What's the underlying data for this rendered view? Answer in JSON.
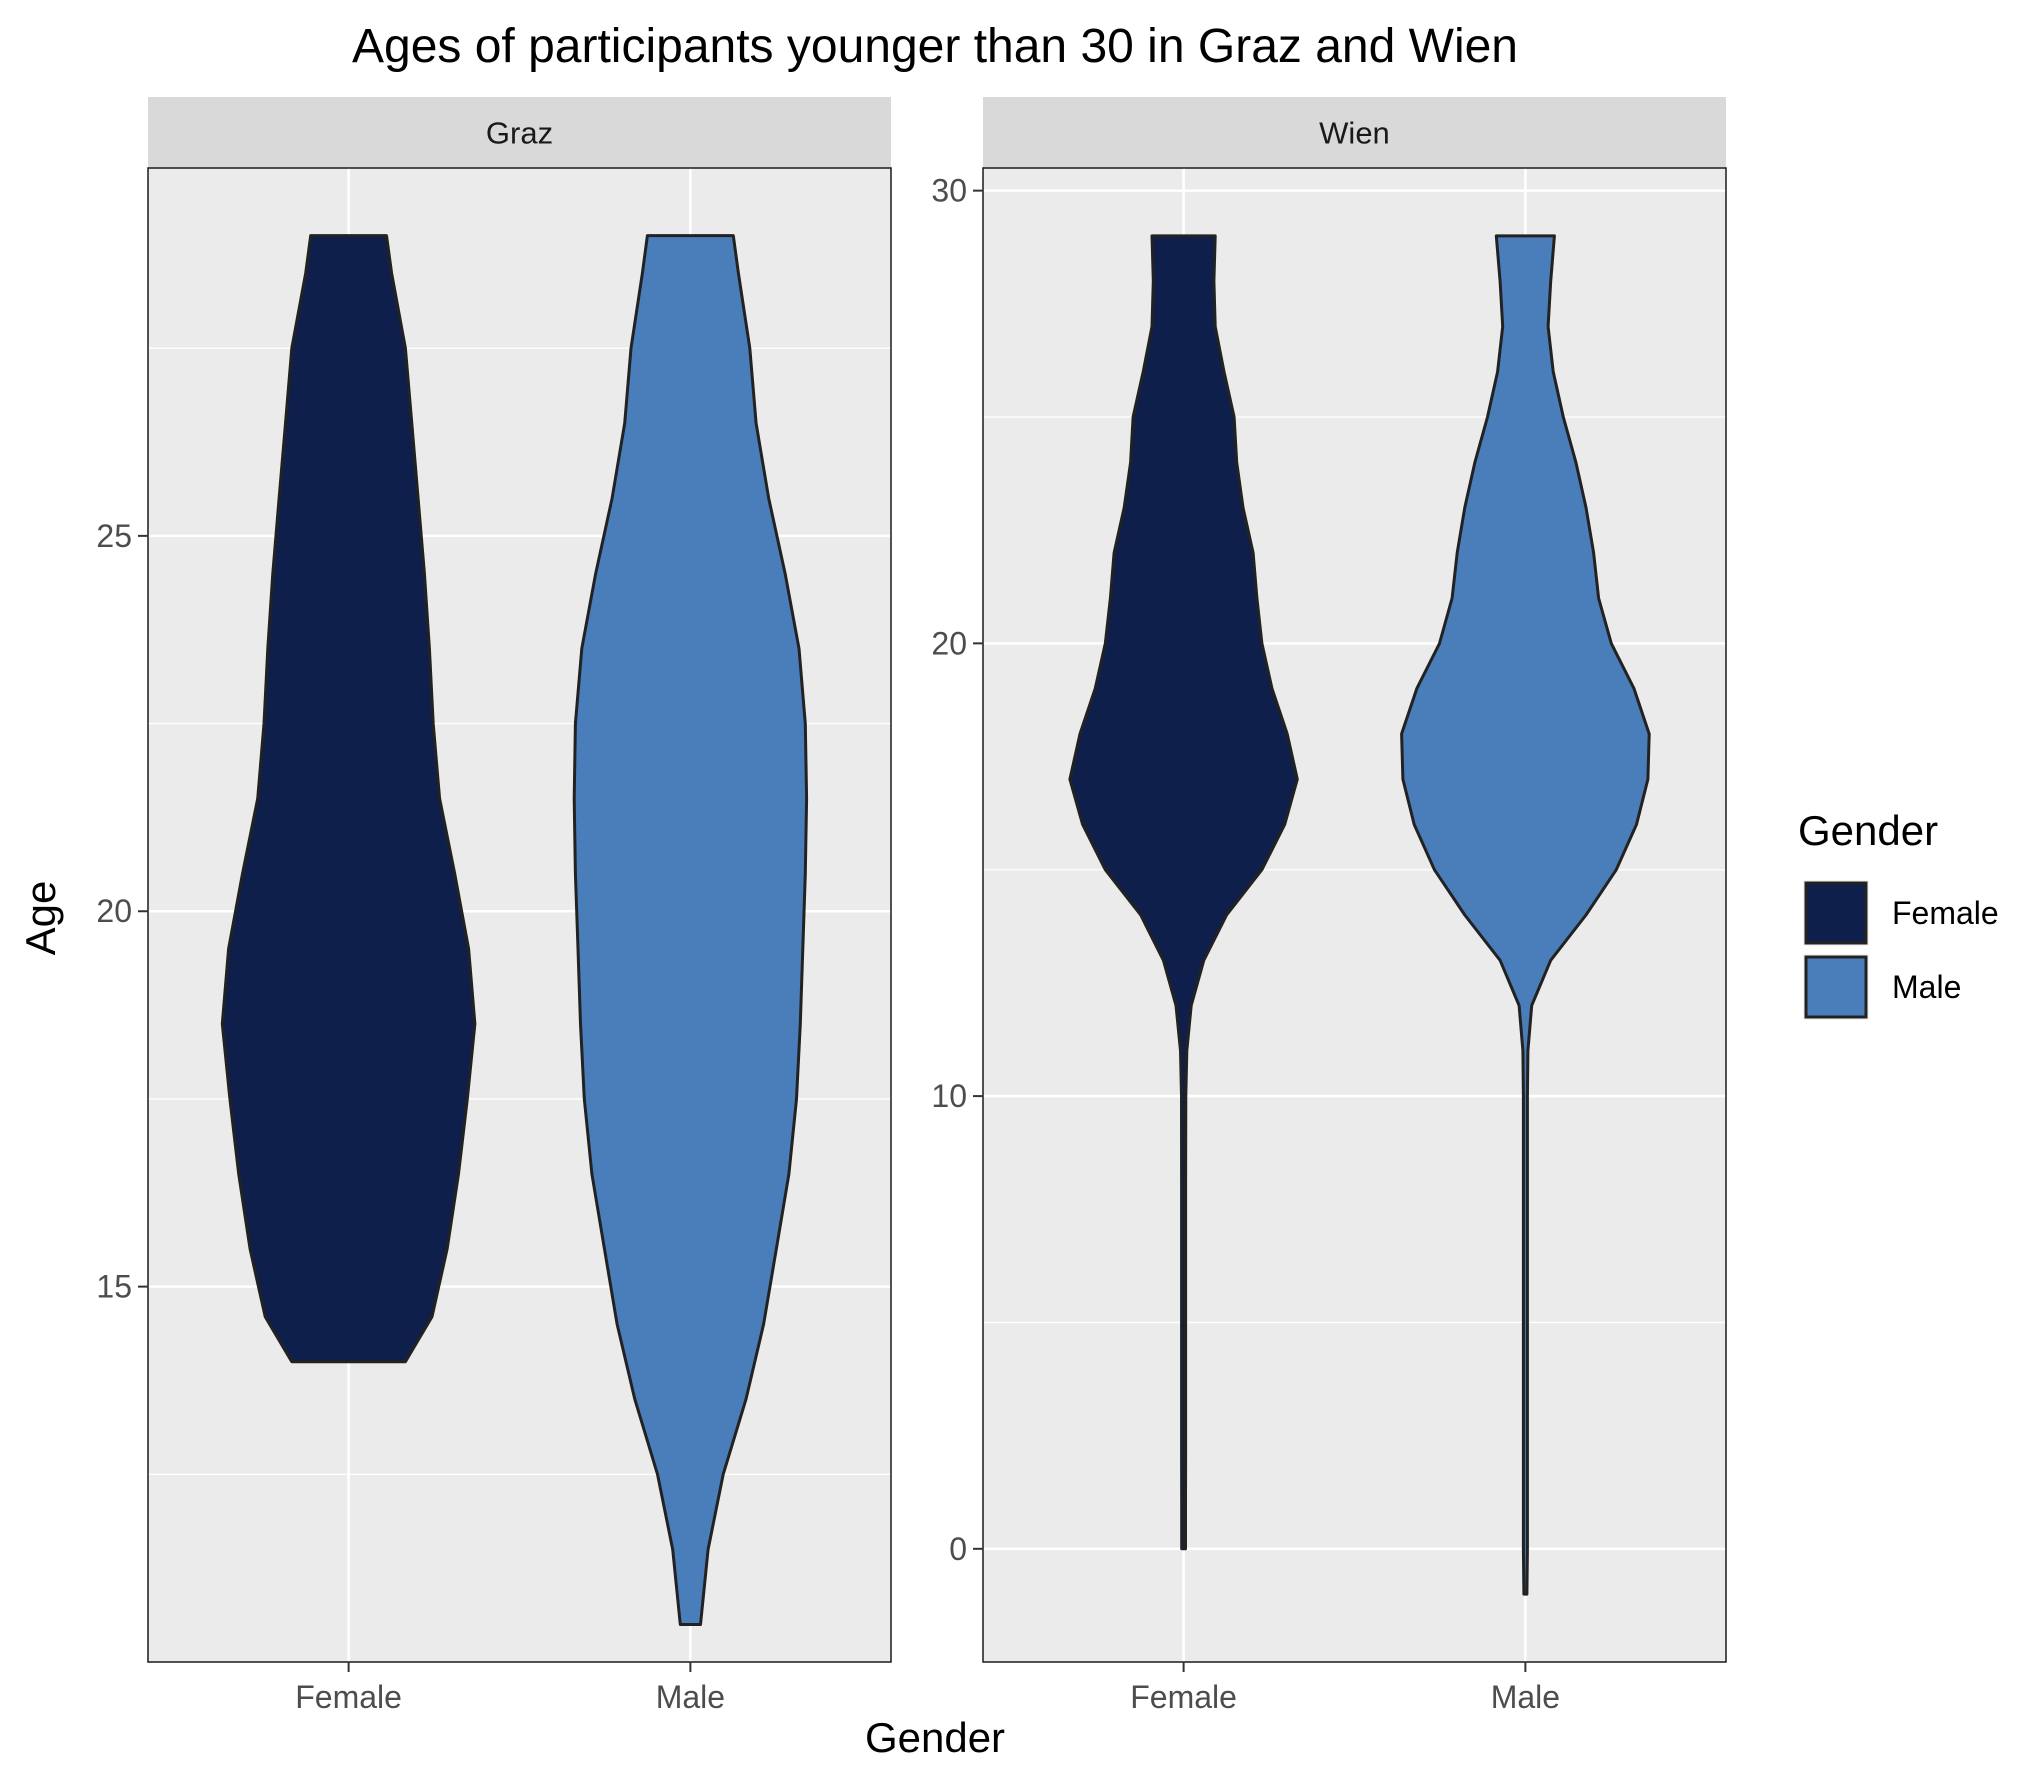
{
  "chart_data": {
    "type": "violin",
    "title": "Ages of participants younger than 30 in Graz and Wien",
    "xlabel": "Gender",
    "ylabel": "Age",
    "categories": [
      "Female",
      "Male"
    ],
    "grid": true,
    "legend": {
      "title": "Gender",
      "placement": "right",
      "entries": [
        {
          "label": "Female",
          "color": "#0f1f4b"
        },
        {
          "label": "Male",
          "color": "#4a7ebb"
        }
      ]
    },
    "facets": [
      {
        "label": "Graz",
        "ylim": [
          10,
          29.9
        ],
        "yticks": [
          15,
          20,
          25
        ],
        "violins": [
          {
            "name": "Female",
            "color": "#0f1f4b",
            "range": [
              14,
              29
            ],
            "profile": [
              [
                14,
                0.45
              ],
              [
                14.6,
                0.66
              ],
              [
                15.5,
                0.78
              ],
              [
                16.5,
                0.87
              ],
              [
                17.5,
                0.94
              ],
              [
                18.5,
                1.0
              ],
              [
                19.5,
                0.95
              ],
              [
                20.5,
                0.84
              ],
              [
                21.5,
                0.72
              ],
              [
                22.5,
                0.67
              ],
              [
                23.5,
                0.64
              ],
              [
                24.5,
                0.6
              ],
              [
                25.5,
                0.55
              ],
              [
                26.5,
                0.5
              ],
              [
                27.5,
                0.45
              ],
              [
                28.5,
                0.34
              ],
              [
                29,
                0.3
              ]
            ]
          },
          {
            "name": "Male",
            "color": "#4a7ebb",
            "range": [
              10.5,
              29
            ],
            "profile": [
              [
                10.5,
                0.08
              ],
              [
                11.5,
                0.14
              ],
              [
                12.5,
                0.26
              ],
              [
                13.5,
                0.44
              ],
              [
                14.5,
                0.58
              ],
              [
                15.5,
                0.68
              ],
              [
                16.5,
                0.78
              ],
              [
                17.5,
                0.84
              ],
              [
                18.5,
                0.87
              ],
              [
                19.5,
                0.89
              ],
              [
                20.5,
                0.91
              ],
              [
                21.5,
                0.92
              ],
              [
                22.5,
                0.91
              ],
              [
                23.5,
                0.86
              ],
              [
                24.5,
                0.75
              ],
              [
                25.5,
                0.62
              ],
              [
                26.5,
                0.52
              ],
              [
                27.5,
                0.47
              ],
              [
                28.5,
                0.38
              ],
              [
                29,
                0.34
              ]
            ]
          }
        ]
      },
      {
        "label": "Wien",
        "ylim": [
          -2.5,
          30.5
        ],
        "yticks": [
          0,
          10,
          20,
          30
        ],
        "violins": [
          {
            "name": "Female",
            "color": "#0f1f4b",
            "range": [
              0,
              29
            ],
            "profile": [
              [
                0,
                0.015
              ],
              [
                1,
                0.015
              ],
              [
                2,
                0.016
              ],
              [
                4,
                0.016
              ],
              [
                6,
                0.016
              ],
              [
                8,
                0.016
              ],
              [
                10,
                0.017
              ],
              [
                11,
                0.025
              ],
              [
                12,
                0.06
              ],
              [
                13,
                0.16
              ],
              [
                14,
                0.34
              ],
              [
                15,
                0.62
              ],
              [
                16,
                0.8
              ],
              [
                17,
                0.9
              ],
              [
                18,
                0.82
              ],
              [
                19,
                0.7
              ],
              [
                20,
                0.62
              ],
              [
                21,
                0.58
              ],
              [
                22,
                0.55
              ],
              [
                23,
                0.47
              ],
              [
                24,
                0.42
              ],
              [
                25,
                0.4
              ],
              [
                26,
                0.32
              ],
              [
                27,
                0.25
              ],
              [
                28,
                0.24
              ],
              [
                29,
                0.25
              ]
            ]
          },
          {
            "name": "Male",
            "color": "#4a7ebb",
            "range": [
              -1,
              29
            ],
            "profile": [
              [
                -1,
                0.012
              ],
              [
                0,
                0.016
              ],
              [
                1,
                0.016
              ],
              [
                2,
                0.016
              ],
              [
                4,
                0.016
              ],
              [
                6,
                0.016
              ],
              [
                8,
                0.016
              ],
              [
                10,
                0.016
              ],
              [
                11,
                0.02
              ],
              [
                12,
                0.05
              ],
              [
                13,
                0.2
              ],
              [
                14,
                0.48
              ],
              [
                15,
                0.72
              ],
              [
                16,
                0.88
              ],
              [
                17,
                0.97
              ],
              [
                18,
                0.98
              ],
              [
                19,
                0.86
              ],
              [
                20,
                0.68
              ],
              [
                21,
                0.58
              ],
              [
                22,
                0.54
              ],
              [
                23,
                0.48
              ],
              [
                24,
                0.4
              ],
              [
                25,
                0.3
              ],
              [
                26,
                0.22
              ],
              [
                27,
                0.18
              ],
              [
                28,
                0.2
              ],
              [
                29,
                0.23
              ]
            ]
          }
        ]
      }
    ]
  }
}
